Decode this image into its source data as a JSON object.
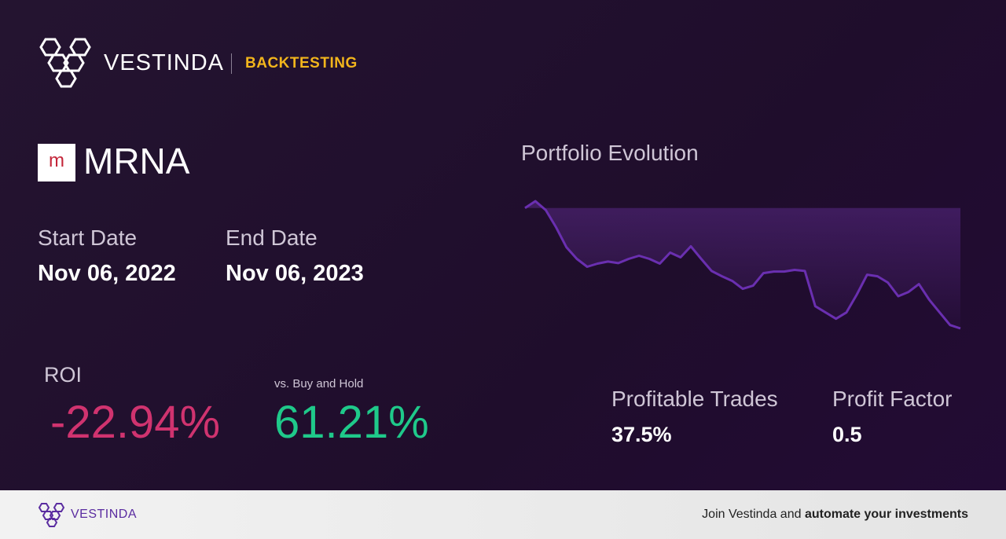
{
  "header": {
    "brand": "VESTINDA",
    "section": "BACKTESTING"
  },
  "asset": {
    "icon": "m",
    "ticker": "MRNA"
  },
  "dates": {
    "start_label": "Start Date",
    "start": "Nov 06, 2022",
    "end_label": "End Date",
    "end": "Nov 06, 2023"
  },
  "metrics": {
    "roi_label": "ROI",
    "roi": "-22.94%",
    "vs_label": "vs. Buy and Hold",
    "vs": "61.21%",
    "trades_label": "Profitable Trades",
    "trades": "37.5%",
    "factor_label": "Profit Factor",
    "factor": "0.5"
  },
  "chart_data": {
    "type": "line",
    "title": "Portfolio Evolution",
    "color": "#6a2fb0",
    "values": [
      100,
      101.3,
      99.6,
      96.3,
      92.5,
      90.3,
      88.8,
      89.4,
      89.8,
      89.5,
      90.3,
      90.9,
      90.3,
      89.4,
      91.5,
      90.6,
      92.7,
      90.3,
      88.0,
      87.0,
      86.1,
      84.6,
      85.2,
      87.6,
      87.9,
      87.9,
      88.2,
      88.0,
      81.3,
      80.1,
      78.9,
      80.1,
      83.5,
      87.3,
      87.0,
      85.8,
      83.2,
      84.0,
      85.5,
      82.5,
      80.1,
      77.7,
      77.06
    ]
  },
  "footer": {
    "brand": "VESTINDA",
    "cta": "Join Vestinda and ",
    "cta_bold": "automate your investments"
  }
}
